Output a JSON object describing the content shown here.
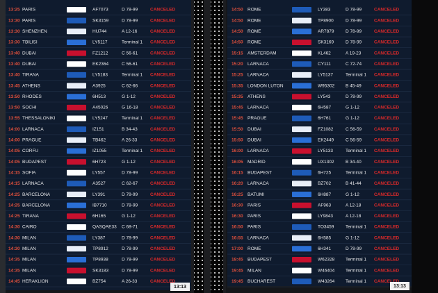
{
  "boards": [
    {
      "rows": [
        [
          "13:25",
          "PARIS",
          "AF7073",
          "D 78-99",
          "CANCELED"
        ],
        [
          "13:30",
          "PARIS",
          "SK3159",
          "D 78-99",
          "CANCELED"
        ],
        [
          "13:30",
          "SHENZHEN",
          "HU744",
          "A 12-16",
          "CANCELED"
        ],
        [
          "13:30",
          "TBILISI",
          "LY5117",
          "Terminal 1",
          "CANCELED"
        ],
        [
          "13:40",
          "DUBAI",
          "FZ1212",
          "C 56-61",
          "CANCELED"
        ],
        [
          "13:40",
          "DUBAI",
          "EK2364",
          "C 56-61",
          "CANCELED"
        ],
        [
          "13:40",
          "TIRANA",
          "LY5183",
          "Terminal 1",
          "CANCELED"
        ],
        [
          "13:45",
          "ATHENS",
          "A3925",
          "C 62-66",
          "CANCELED"
        ],
        [
          "13:50",
          "RHODES",
          "6H513",
          "G 1-12",
          "CANCELED"
        ],
        [
          "13:50",
          "SOCHI",
          "A45026",
          "G 16-18",
          "CANCELED"
        ],
        [
          "13:55",
          "THESSALONIKI",
          "LY5247",
          "Terminal 1",
          "CANCELED"
        ],
        [
          "14:00",
          "LARNACA",
          "IZ151",
          "B 34-43",
          "CANCELED"
        ],
        [
          "14:00",
          "PRAGUE",
          "TB462",
          "A 26-33",
          "CANCELED"
        ],
        [
          "14:05",
          "CORFU",
          "IZ1055",
          "Terminal 1",
          "CANCELED"
        ],
        [
          "14:05",
          "BUDAPEST",
          "6H723",
          "G 1-12",
          "CANCELED"
        ],
        [
          "14:15",
          "SOFIA",
          "LY557",
          "D 78-99",
          "CANCELED"
        ],
        [
          "14:15",
          "LARNACA",
          "A3527",
          "C 62-67",
          "CANCELED"
        ],
        [
          "14:25",
          "BARCELONA",
          "LY391",
          "D 78-99",
          "CANCELED"
        ],
        [
          "14:25",
          "BARCELONA",
          "IB7710",
          "D 78-99",
          "CANCELED"
        ],
        [
          "14:25",
          "TIRANA",
          "6H165",
          "G 1-12",
          "CANCELED"
        ],
        [
          "14:30",
          "CAIRO",
          "QASQAE33",
          "C 68-71",
          "CANCELED"
        ],
        [
          "14:30",
          "MILAN",
          "LY387",
          "D 78-99",
          "CANCELED"
        ],
        [
          "14:30",
          "MILAN",
          "TP8912",
          "D 78-99",
          "CANCELED"
        ],
        [
          "14:35",
          "MILAN",
          "TP8938",
          "D 78-99",
          "CANCELED"
        ],
        [
          "14:35",
          "MILAN",
          "SK3183",
          "D 78-99",
          "CANCELED"
        ],
        [
          "14:45",
          "HERAKLION",
          "BZ754",
          "A 26-33",
          "CANCELED"
        ]
      ],
      "clock": "13:13"
    },
    {
      "rows": [
        [
          "14:50",
          "ROME",
          "LY383",
          "D 78-99",
          "CANCELED"
        ],
        [
          "14:50",
          "ROME",
          "TP8900",
          "D 78-99",
          "CANCELED"
        ],
        [
          "14:50",
          "ROME",
          "AR7879",
          "D 78-99",
          "CANCELED"
        ],
        [
          "14:50",
          "ROME",
          "SK3169",
          "D 78-99",
          "CANCELED"
        ],
        [
          "15:15",
          "AMSTERDAM",
          "KL462",
          "A 19-23",
          "CANCELED"
        ],
        [
          "15:20",
          "LARNACA",
          "CY111",
          "C 72-74",
          "CANCELED"
        ],
        [
          "15:25",
          "LARNACA",
          "LY5137",
          "Terminal 1",
          "CANCELED"
        ],
        [
          "15:35",
          "LONDON LUTON",
          "W95302",
          "B 45-49",
          "CANCELED"
        ],
        [
          "15:35",
          "ATHENS",
          "LY543",
          "D 78-99",
          "CANCELED"
        ],
        [
          "15:45",
          "LARNACA",
          "6H587",
          "G 1-12",
          "CANCELED"
        ],
        [
          "15:45",
          "PRAGUE",
          "6H761",
          "G 1-12",
          "CANCELED"
        ],
        [
          "15:50",
          "DUBAI",
          "FZ1082",
          "C 56-59",
          "CANCELED"
        ],
        [
          "15:50",
          "DUBAI",
          "EK2449",
          "C 56-59",
          "CANCELED"
        ],
        [
          "16:00",
          "LARNACA",
          "LY5133",
          "Terminal 1",
          "CANCELED"
        ],
        [
          "16:05",
          "MADRID",
          "UX1302",
          "B 34-40",
          "CANCELED"
        ],
        [
          "16:15",
          "BUDAPEST",
          "6H725",
          "Terminal 1",
          "CANCELED"
        ],
        [
          "16:20",
          "LARNACA",
          "BZ702",
          "B 41-44",
          "CANCELED"
        ],
        [
          "16:25",
          "BATUMI",
          "6H887",
          "G 1-12",
          "CANCELED"
        ],
        [
          "16:30",
          "PARIS",
          "AF963",
          "A 12-18",
          "CANCELED"
        ],
        [
          "16:30",
          "PARIS",
          "LY9843",
          "A 12-18",
          "CANCELED"
        ],
        [
          "16:50",
          "PARIS",
          "TO3459",
          "Terminal 1",
          "CANCELED"
        ],
        [
          "16:55",
          "LARNACA",
          "6H585",
          "G 1-12",
          "CANCELED"
        ],
        [
          "17:00",
          "ROME",
          "6H341",
          "D 78-99",
          "CANCELED"
        ],
        [
          "18:45",
          "BUDAPEST",
          "W62328",
          "Terminal 1",
          "CANCELED"
        ],
        [
          "19:45",
          "MILAN",
          "W46404",
          "Terminal 1",
          "CANCELED"
        ],
        [
          "19:45",
          "BUCHAREST",
          "W43264",
          "Terminal 1",
          "CANCELED"
        ]
      ],
      "clock": "13:13"
    }
  ]
}
